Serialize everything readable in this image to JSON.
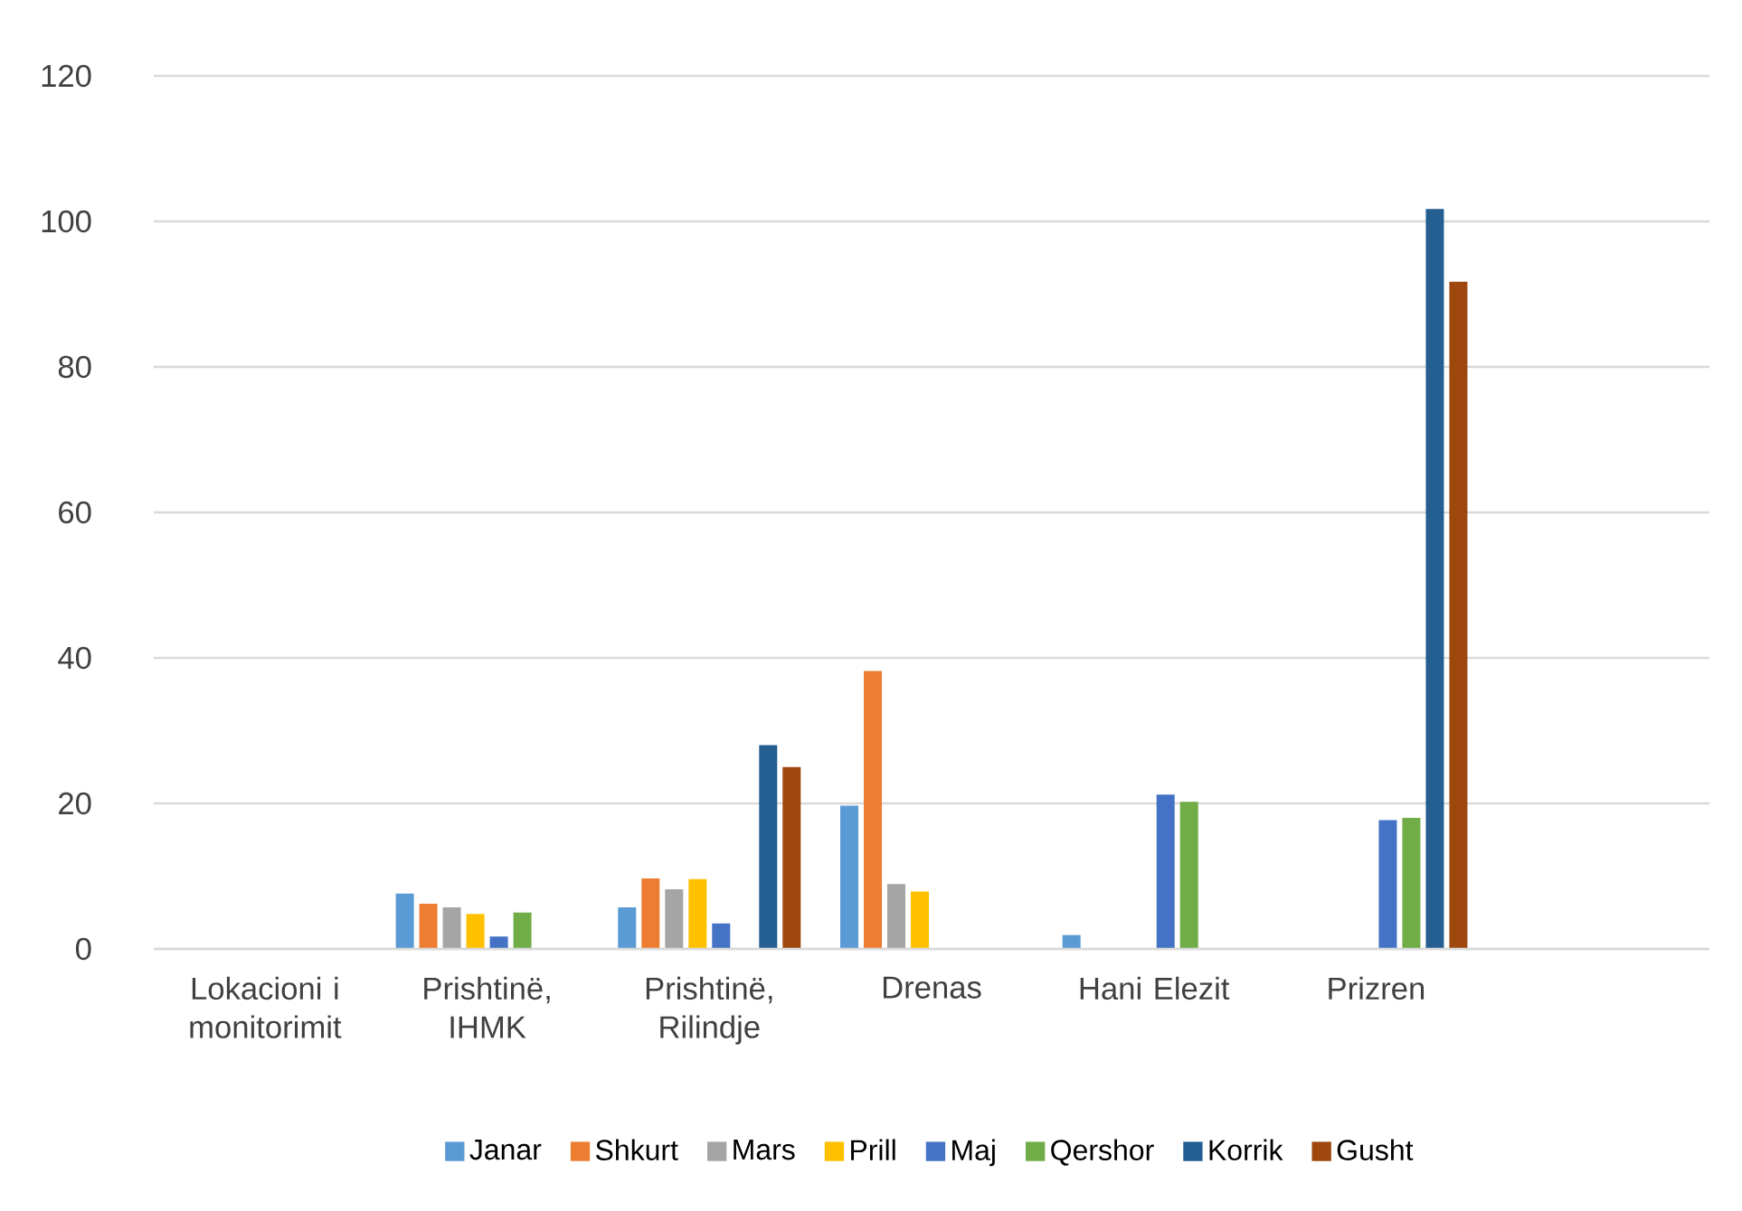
{
  "chart_data": {
    "type": "bar",
    "categories": [
      "Lokacioni i monitorimit",
      "Prishtinë, IHMK",
      "Prishtinë, Rilindje",
      "Drenas",
      "Hani Elezit",
      "Prizren",
      null
    ],
    "series": [
      {
        "name": "Janar",
        "color": "#5b9bd5",
        "values": [
          null,
          7.6,
          5.7,
          19.7,
          1.9,
          null,
          null
        ]
      },
      {
        "name": "Shkurt",
        "color": "#ed7d31",
        "values": [
          null,
          6.2,
          9.7,
          38.2,
          null,
          null,
          null
        ]
      },
      {
        "name": "Mars",
        "color": "#a5a5a5",
        "values": [
          null,
          5.7,
          8.2,
          8.9,
          null,
          null,
          null
        ]
      },
      {
        "name": "Prill",
        "color": "#ffc000",
        "values": [
          null,
          4.8,
          9.6,
          7.9,
          null,
          null,
          null
        ]
      },
      {
        "name": "Maj",
        "color": "#4472c4",
        "values": [
          null,
          1.7,
          3.5,
          null,
          21.2,
          17.7,
          null
        ]
      },
      {
        "name": "Qershor",
        "color": "#70ad47",
        "values": [
          null,
          5.0,
          null,
          null,
          20.2,
          18.0,
          null
        ]
      },
      {
        "name": "Korrik",
        "color": "#255e91",
        "values": [
          null,
          null,
          28.0,
          null,
          null,
          101.7,
          null
        ]
      },
      {
        "name": "Gusht",
        "color": "#9e480e",
        "values": [
          null,
          null,
          25.0,
          null,
          null,
          91.7,
          null
        ]
      }
    ],
    "ylim": [
      0,
      120
    ],
    "yticks": [
      0,
      20,
      40,
      60,
      80,
      100,
      120
    ],
    "grid": "y",
    "legend": "bottom"
  }
}
